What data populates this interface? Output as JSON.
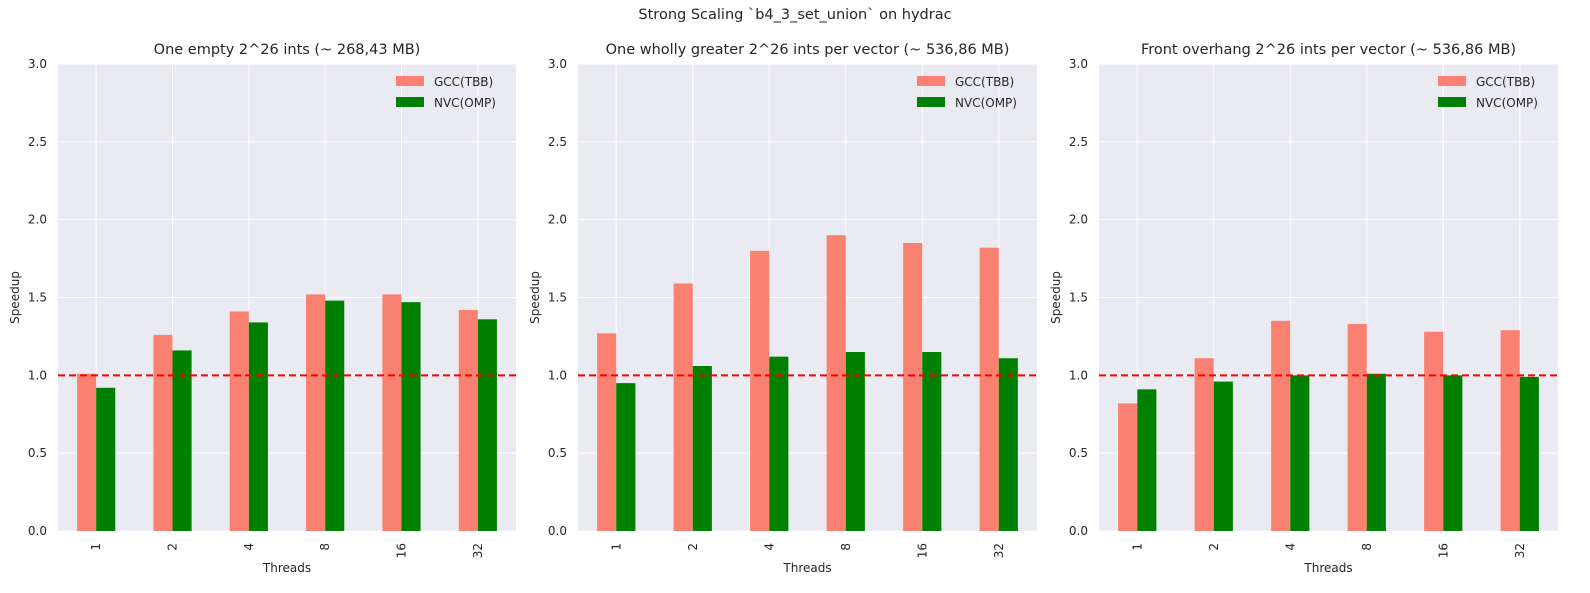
{
  "figure": {
    "suptitle": "Strong Scaling `b4_3_set_union` on hydrac"
  },
  "colors": {
    "background": "#EAEAF2",
    "grid": "#FFFFFF",
    "gcc": "#FA8072",
    "nvc": "#008000",
    "baseline": "#FF0000"
  },
  "chart_data": [
    {
      "type": "bar",
      "title": "One empty 2^26 ints (~ 268,43 MB)",
      "xlabel": "Threads",
      "ylabel": "Speedup",
      "categories": [
        "1",
        "2",
        "4",
        "8",
        "16",
        "32"
      ],
      "ylim": [
        0,
        3.0
      ],
      "yticks": [
        "0.0",
        "0.5",
        "1.0",
        "1.5",
        "2.0",
        "2.5",
        "3.0"
      ],
      "baseline": 1.0,
      "legend": "top-right",
      "grid": true,
      "series": [
        {
          "name": "GCC(TBB)",
          "values": [
            1.01,
            1.26,
            1.41,
            1.52,
            1.52,
            1.42
          ]
        },
        {
          "name": "NVC(OMP)",
          "values": [
            0.92,
            1.16,
            1.34,
            1.48,
            1.47,
            1.36
          ]
        }
      ]
    },
    {
      "type": "bar",
      "title": "One wholly greater 2^26 ints per vector (~ 536,86 MB)",
      "xlabel": "Threads",
      "ylabel": "Speedup",
      "categories": [
        "1",
        "2",
        "4",
        "8",
        "16",
        "32"
      ],
      "ylim": [
        0,
        3.0
      ],
      "yticks": [
        "0.0",
        "0.5",
        "1.0",
        "1.5",
        "2.0",
        "2.5",
        "3.0"
      ],
      "baseline": 1.0,
      "legend": "top-right",
      "grid": true,
      "series": [
        {
          "name": "GCC(TBB)",
          "values": [
            1.27,
            1.59,
            1.8,
            1.9,
            1.85,
            1.82
          ]
        },
        {
          "name": "NVC(OMP)",
          "values": [
            0.95,
            1.06,
            1.12,
            1.15,
            1.15,
            1.11
          ]
        }
      ]
    },
    {
      "type": "bar",
      "title": "Front overhang 2^26 ints per vector (~ 536,86 MB)",
      "xlabel": "Threads",
      "ylabel": "Speedup",
      "categories": [
        "1",
        "2",
        "4",
        "8",
        "16",
        "32"
      ],
      "ylim": [
        0,
        3.0
      ],
      "yticks": [
        "0.0",
        "0.5",
        "1.0",
        "1.5",
        "2.0",
        "2.5",
        "3.0"
      ],
      "baseline": 1.0,
      "legend": "top-right",
      "grid": true,
      "series": [
        {
          "name": "GCC(TBB)",
          "values": [
            0.82,
            1.11,
            1.35,
            1.33,
            1.28,
            1.29
          ]
        },
        {
          "name": "NVC(OMP)",
          "values": [
            0.91,
            0.96,
            1.0,
            1.01,
            1.0,
            0.99
          ]
        }
      ]
    }
  ]
}
